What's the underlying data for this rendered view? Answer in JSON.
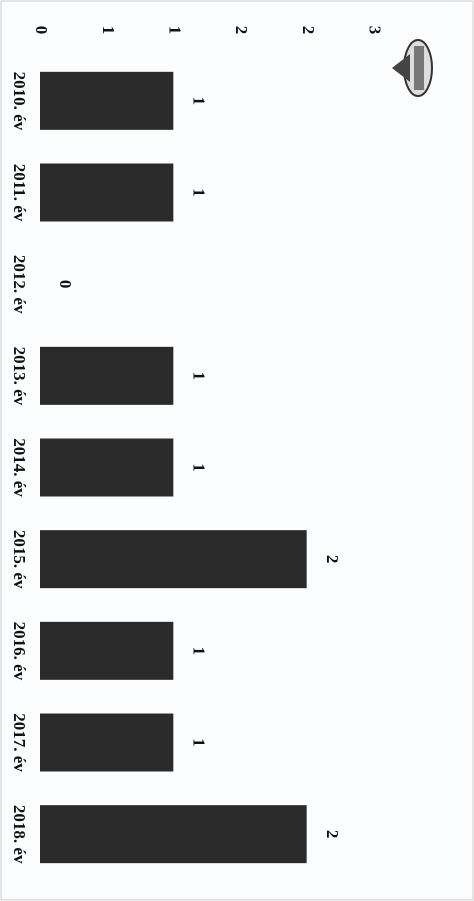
{
  "chart_data": {
    "type": "bar",
    "categories": [
      "2010. év",
      "2011. év",
      "2012. év",
      "2013. év",
      "2014. év",
      "2015. év",
      "2016. év",
      "2017. év",
      "2018. év"
    ],
    "values": [
      1,
      1,
      0,
      1,
      1,
      2,
      1,
      1,
      2
    ],
    "color": "#2a2a2a",
    "ylim": [
      0,
      3
    ],
    "yticks": [
      0,
      {
        "value": 0.5,
        "label": "1"
      },
      1,
      {
        "value": 1.5,
        "label": "2"
      },
      2,
      {
        "value": 2.5,
        "label": "3"
      }
    ]
  }
}
